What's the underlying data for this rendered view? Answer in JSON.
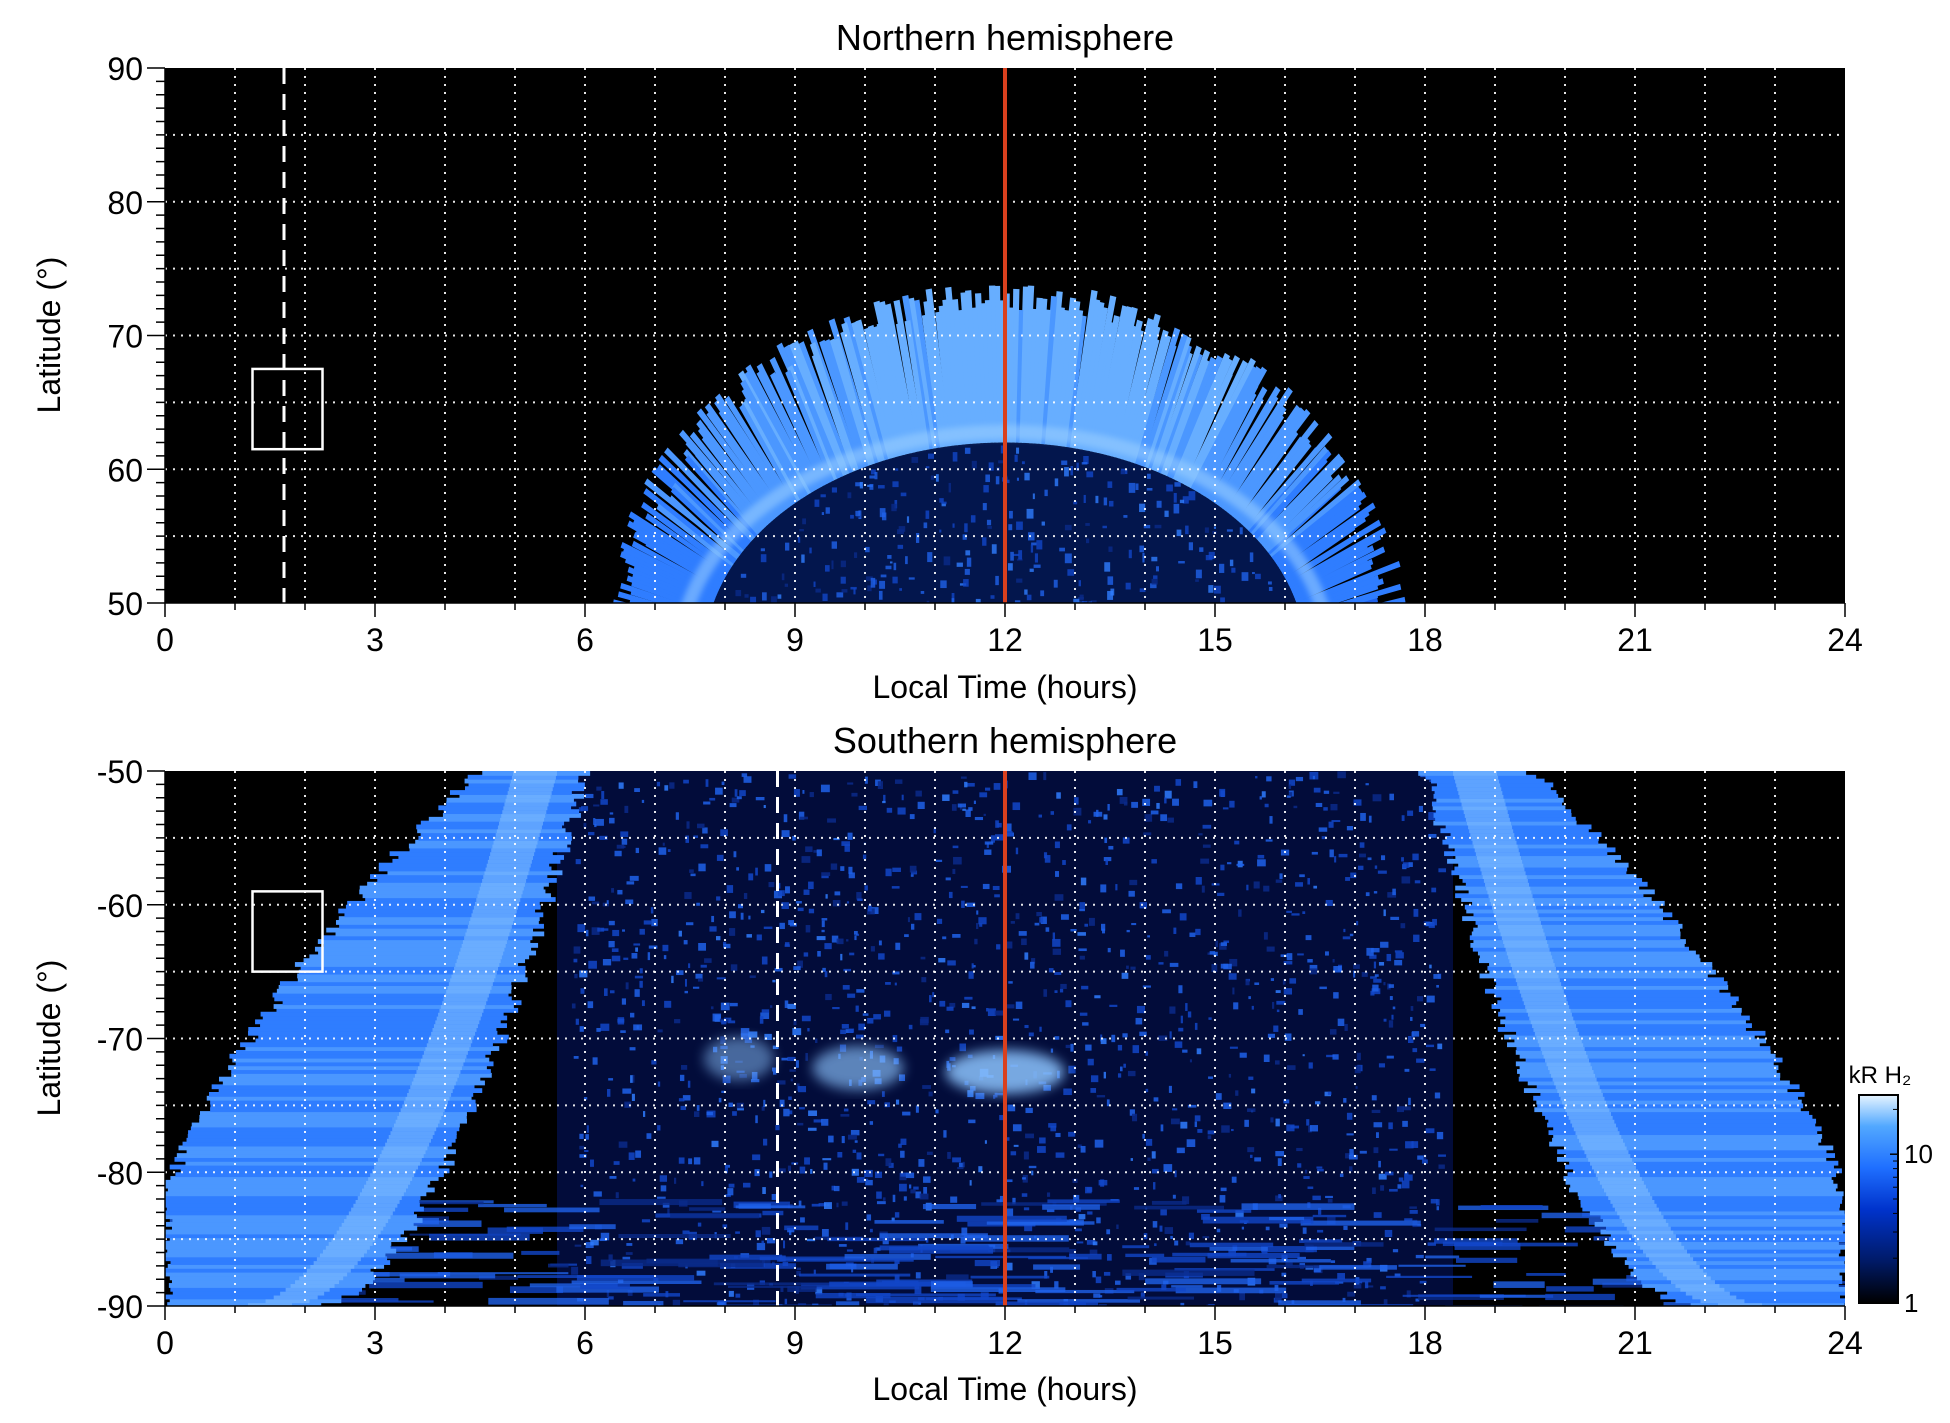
{
  "chart_data": [
    {
      "type": "heatmap",
      "title": "Northern hemisphere",
      "xlabel": "Local Time (hours)",
      "ylabel": "Latitude (°)",
      "xlim": [
        0,
        24
      ],
      "ylim": [
        50,
        90
      ],
      "xticks": [
        "0",
        "3",
        "6",
        "9",
        "12",
        "15",
        "18",
        "21",
        "24"
      ],
      "yticks": [
        "50",
        "60",
        "70",
        "80",
        "90"
      ],
      "grid": true,
      "background": "#000000",
      "marker_line": {
        "x": 12,
        "color": "#d9401e"
      },
      "dashed_line": {
        "x": 1.7,
        "color": "#ffffff"
      },
      "box": {
        "x": [
          1.25,
          2.25
        ],
        "y": [
          61.5,
          67.5
        ],
        "color": "#ffffff"
      },
      "auroral_oval": {
        "center_x": 12,
        "center_y": 46,
        "inner_radius": 18,
        "outer_radius": 27,
        "peak_latitude_at_noon": 73,
        "lat_edge_at_noon": 62
      }
    },
    {
      "type": "heatmap",
      "title": "Southern hemisphere",
      "xlabel": "Local Time (hours)",
      "ylabel": "Latitude (°)",
      "xlim": [
        0,
        24
      ],
      "ylim": [
        -90,
        -50
      ],
      "xticks": [
        "0",
        "3",
        "6",
        "9",
        "12",
        "15",
        "18",
        "21",
        "24"
      ],
      "yticks": [
        "-90",
        "-80",
        "-70",
        "-60",
        "-50"
      ],
      "grid": true,
      "background": "#000000",
      "marker_line": {
        "x": 12,
        "color": "#d9401e"
      },
      "dashed_line": {
        "x": 8.75,
        "color": "#ffffff"
      },
      "box": {
        "x": [
          1.25,
          2.25
        ],
        "y": [
          -65,
          -59
        ],
        "color": "#ffffff"
      },
      "bright_spots": [
        {
          "x": 12.0,
          "y": -72.5,
          "intensity": 0.85
        },
        {
          "x": 9.9,
          "y": -72.2,
          "intensity": 0.65
        },
        {
          "x": 8.2,
          "y": -71.5,
          "intensity": 0.5
        }
      ]
    }
  ],
  "colorbar": {
    "label": "kR H₂",
    "ticks": [
      "1",
      "10"
    ],
    "scale": "log",
    "range": [
      1,
      25
    ],
    "colors": [
      "#000000",
      "#001a66",
      "#0033cc",
      "#1f6fff",
      "#52a8ff",
      "#e6f4ff"
    ]
  }
}
